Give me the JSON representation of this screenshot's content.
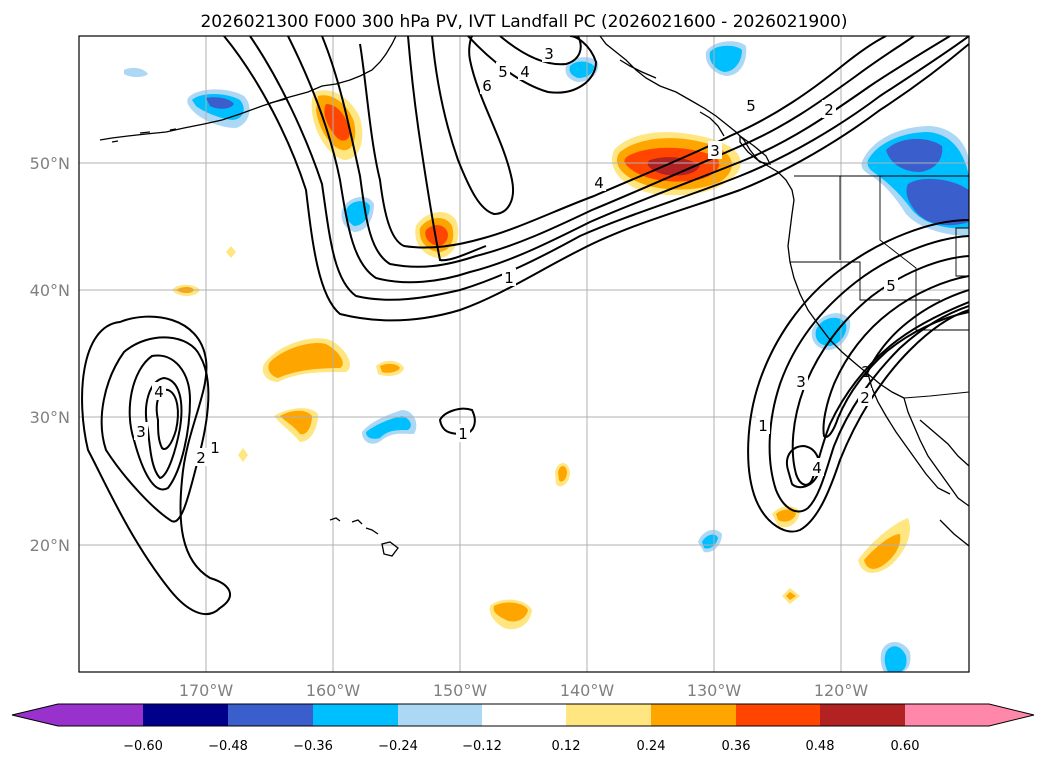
{
  "title": "2026021300 F000 300 hPa PV, IVT Landfall PC (2026021600 - 2026021900)",
  "map": {
    "lat_labels": [
      "50°N",
      "40°N",
      "30°N",
      "20°N"
    ],
    "lon_labels": [
      "170°W",
      "160°W",
      "150°W",
      "140°W",
      "130°W",
      "120°W"
    ],
    "contour_labels": [
      "1",
      "2",
      "3",
      "4",
      "5",
      "6",
      "1",
      "2",
      "3",
      "4",
      "1",
      "2",
      "3",
      "4",
      "5",
      "1",
      "3",
      "4",
      "5",
      "2"
    ]
  },
  "colorbar": {
    "ticks": [
      "−0.60",
      "−0.48",
      "−0.36",
      "−0.24",
      "−0.12",
      "0.12",
      "0.24",
      "0.36",
      "0.48",
      "0.60"
    ],
    "colors": [
      "#9932cc",
      "#00008b",
      "#3a5fcd",
      "#00bfff",
      "#add8f5",
      "#ffffff",
      "#ffe680",
      "#ffa500",
      "#ff4500",
      "#b22222",
      "#ff88aa"
    ]
  }
}
